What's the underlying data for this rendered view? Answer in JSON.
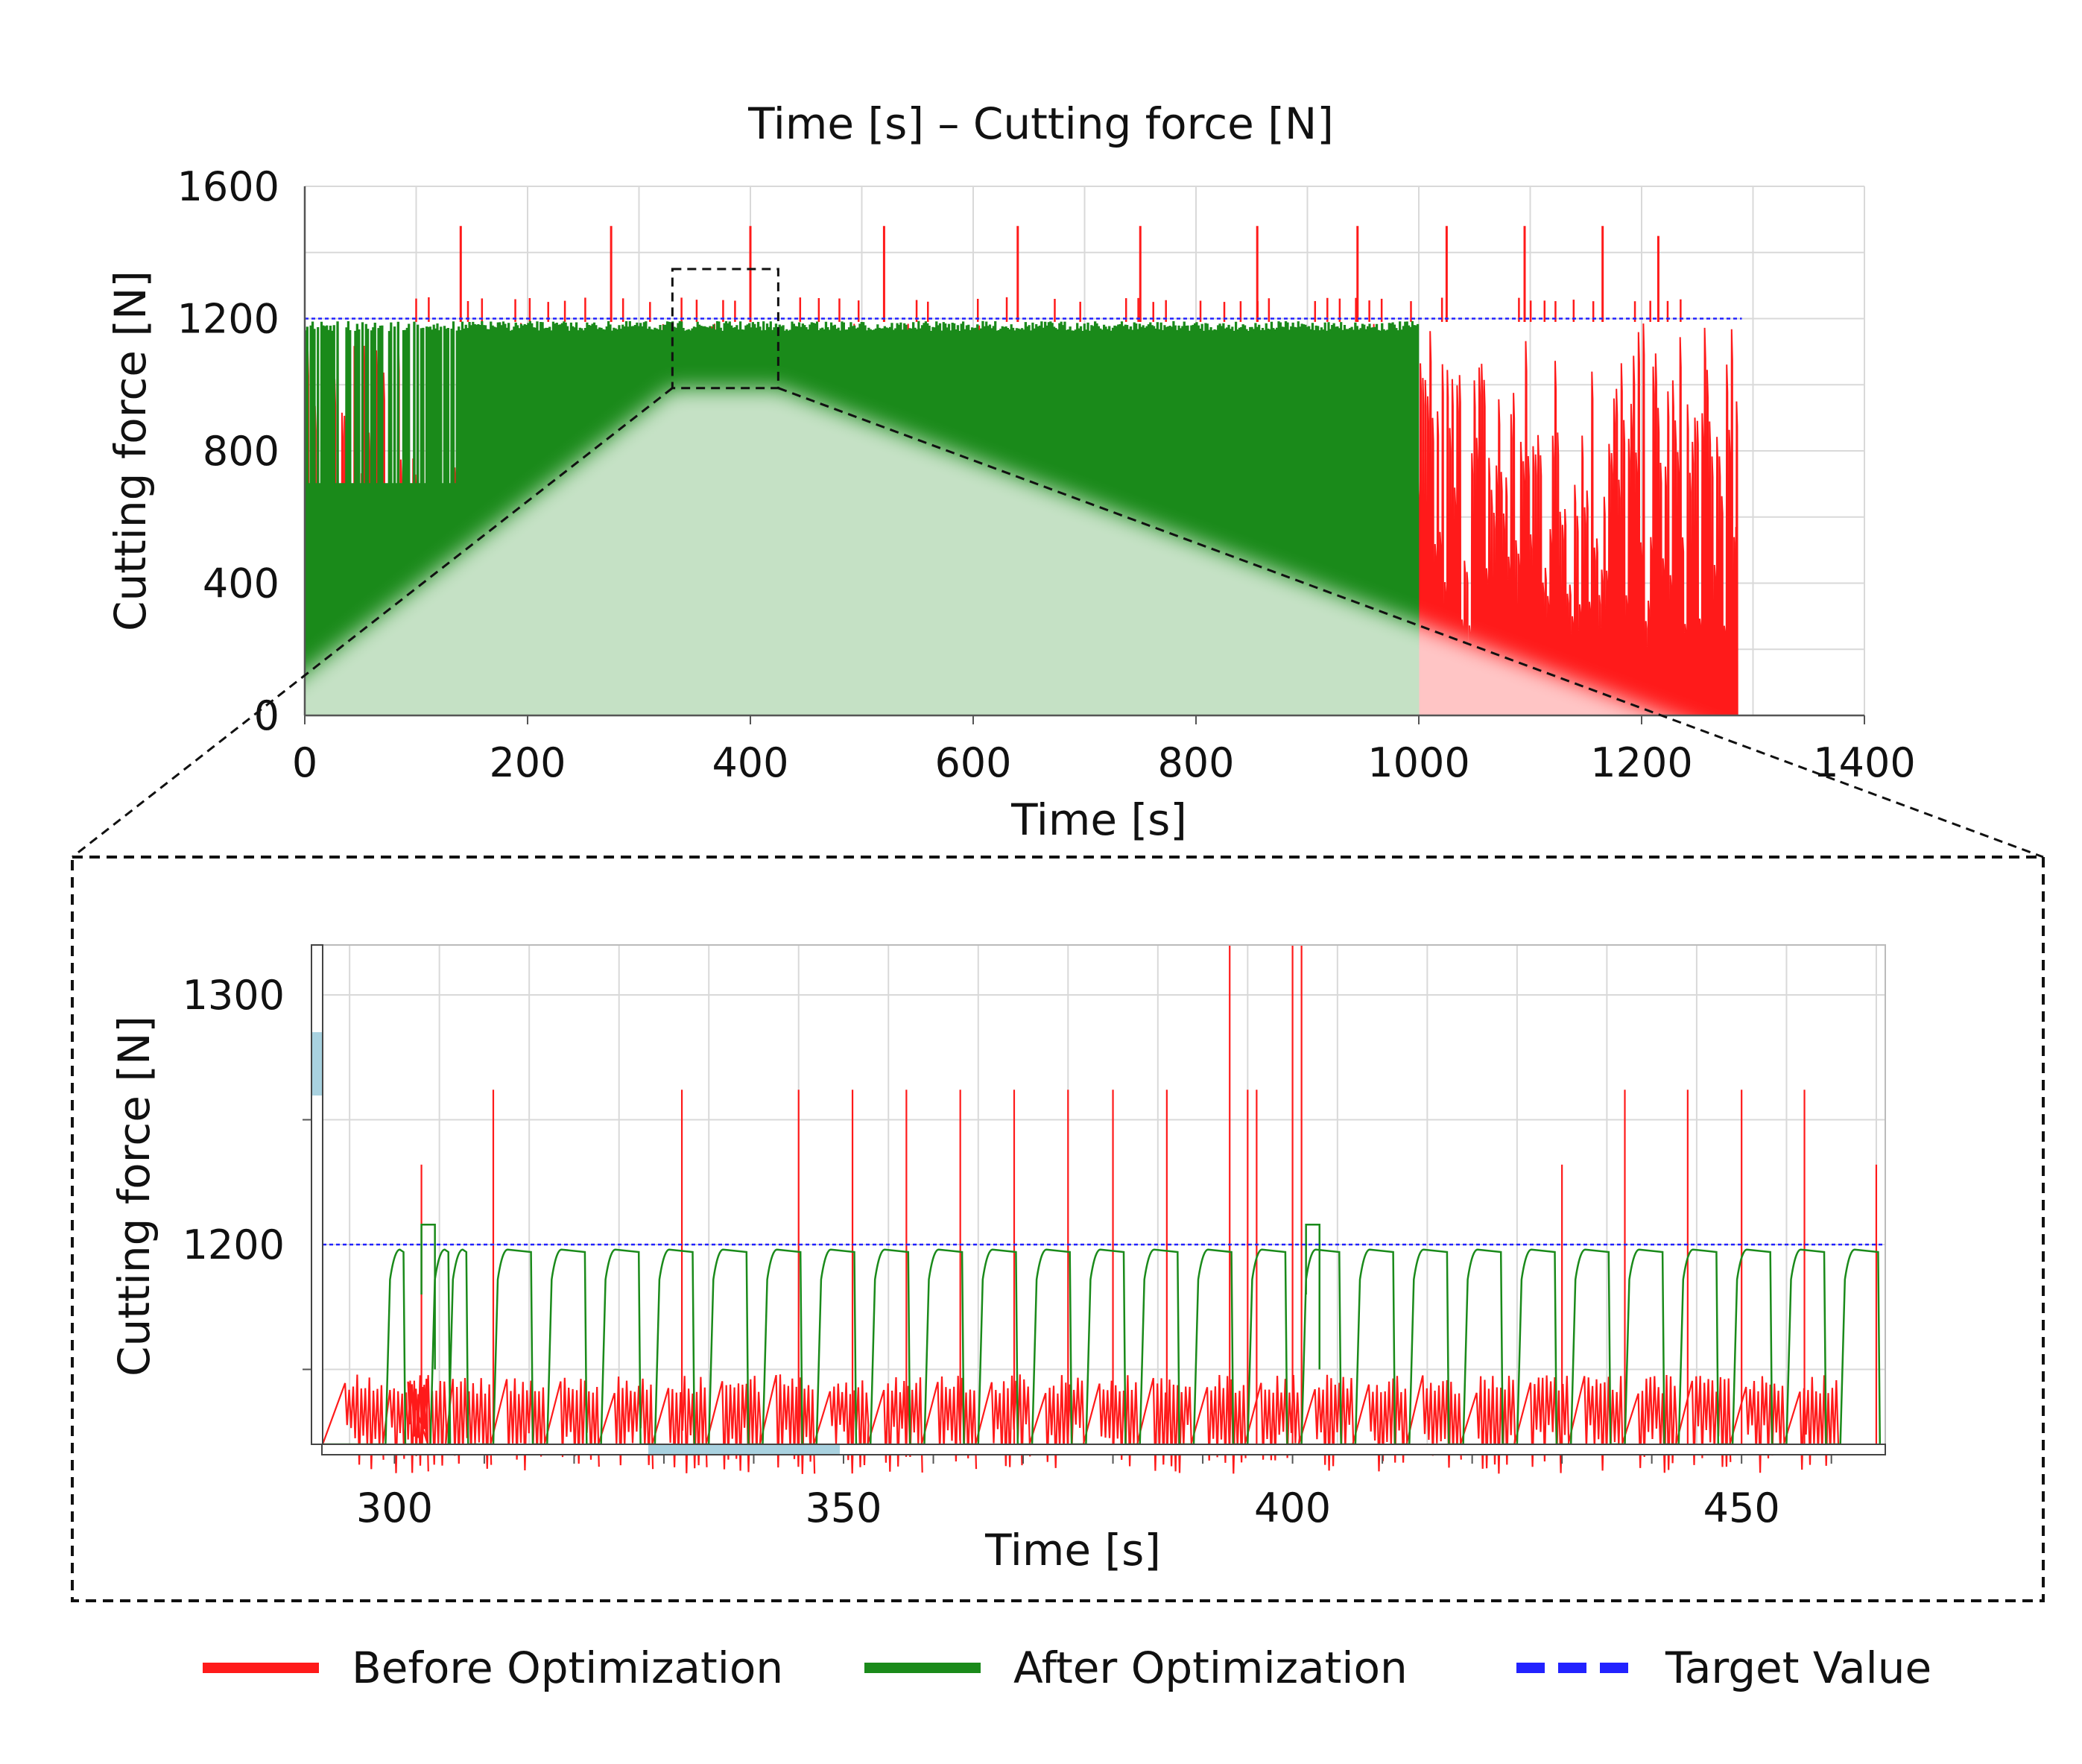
{
  "figure_title": "Time [s] – Cutting force [N]",
  "colors": {
    "before": "#ff1a1a",
    "after": "#1a8a1a",
    "target": "#2222ff",
    "grid": "#d9d9d9",
    "axis": "#555555",
    "scrollbar": "#a9d2e0"
  },
  "legend": [
    {
      "label": "Before Optimization",
      "color": "#ff1a1a",
      "style": "solid"
    },
    {
      "label": "After Optimization",
      "color": "#1a8a1a",
      "style": "solid"
    },
    {
      "label": "Target Value",
      "color": "#2222ff",
      "style": "dashed"
    }
  ],
  "chart_data": [
    {
      "id": "overview",
      "type": "line",
      "title": "Time [s] – Cutting force [N]",
      "xlabel": "Time [s]",
      "ylabel": "Cutting force [N]",
      "xlim": [
        0,
        1400
      ],
      "ylim": [
        0,
        1600
      ],
      "xticks": [
        0,
        200,
        400,
        600,
        800,
        1000,
        1200,
        1400
      ],
      "yticks": [
        0,
        400,
        800,
        1200,
        1600
      ],
      "grid": true,
      "target_value": 1200,
      "target_x_range": [
        0,
        1290
      ],
      "zoom_region": {
        "x": [
          330,
          425
        ],
        "y": [
          990,
          1350
        ]
      },
      "series": [
        {
          "name": "Before Optimization",
          "end_time": 1285,
          "typical_peak": 1190,
          "spike_level_frequent": 1250,
          "spike_peaks": [
            {
              "x": 140,
              "y": 1480
            },
            {
              "x": 275,
              "y": 1480
            },
            {
              "x": 400,
              "y": 1480
            },
            {
              "x": 520,
              "y": 1480
            },
            {
              "x": 640,
              "y": 1480
            },
            {
              "x": 750,
              "y": 1480
            },
            {
              "x": 855,
              "y": 1480
            },
            {
              "x": 945,
              "y": 1480
            },
            {
              "x": 1025,
              "y": 1480
            },
            {
              "x": 1095,
              "y": 1480
            },
            {
              "x": 1165,
              "y": 1480
            },
            {
              "x": 1215,
              "y": 1450
            }
          ]
        },
        {
          "name": "After Optimization",
          "end_time": 1000,
          "typical_peak": 1190,
          "secondary_plateau": 700
        }
      ]
    },
    {
      "id": "zoom",
      "type": "line",
      "xlabel": "Time [s]",
      "ylabel": "Cutting force [N]",
      "xlim": [
        292,
        466
      ],
      "ylim": [
        1120,
        1320
      ],
      "xticks": [
        300,
        350,
        400,
        450
      ],
      "yticks": [
        1200,
        1300
      ],
      "grid": true,
      "target_value": 1200,
      "series": [
        {
          "name": "Before Optimization",
          "base_level": 1148,
          "spikes": [
            {
              "x": 303,
              "y": 1232
            },
            {
              "x": 311,
              "y": 1262
            },
            {
              "x": 332,
              "y": 1262
            },
            {
              "x": 345,
              "y": 1262
            },
            {
              "x": 351,
              "y": 1262
            },
            {
              "x": 357,
              "y": 1262
            },
            {
              "x": 363,
              "y": 1262
            },
            {
              "x": 369,
              "y": 1262
            },
            {
              "x": 375,
              "y": 1262
            },
            {
              "x": 380,
              "y": 1262
            },
            {
              "x": 386,
              "y": 1262
            },
            {
              "x": 393,
              "y": 1320
            },
            {
              "x": 395,
              "y": 1262
            },
            {
              "x": 396,
              "y": 1262
            },
            {
              "x": 400,
              "y": 1320
            },
            {
              "x": 401,
              "y": 1320
            },
            {
              "x": 430,
              "y": 1232
            },
            {
              "x": 437,
              "y": 1262
            },
            {
              "x": 444,
              "y": 1262
            },
            {
              "x": 450,
              "y": 1262
            },
            {
              "x": 457,
              "y": 1262
            },
            {
              "x": 465,
              "y": 1232
            }
          ]
        },
        {
          "name": "After Optimization",
          "plateau_level": 1198,
          "overshoot_level": 1208,
          "cycle_starts": [
            299,
            304,
            306,
            311,
            317,
            323,
            329,
            335,
            341,
            347,
            353,
            359,
            365,
            371,
            377,
            383,
            389,
            395,
            401,
            407,
            413,
            419,
            425,
            431,
            437,
            443,
            449,
            455,
            461
          ]
        }
      ]
    }
  ]
}
